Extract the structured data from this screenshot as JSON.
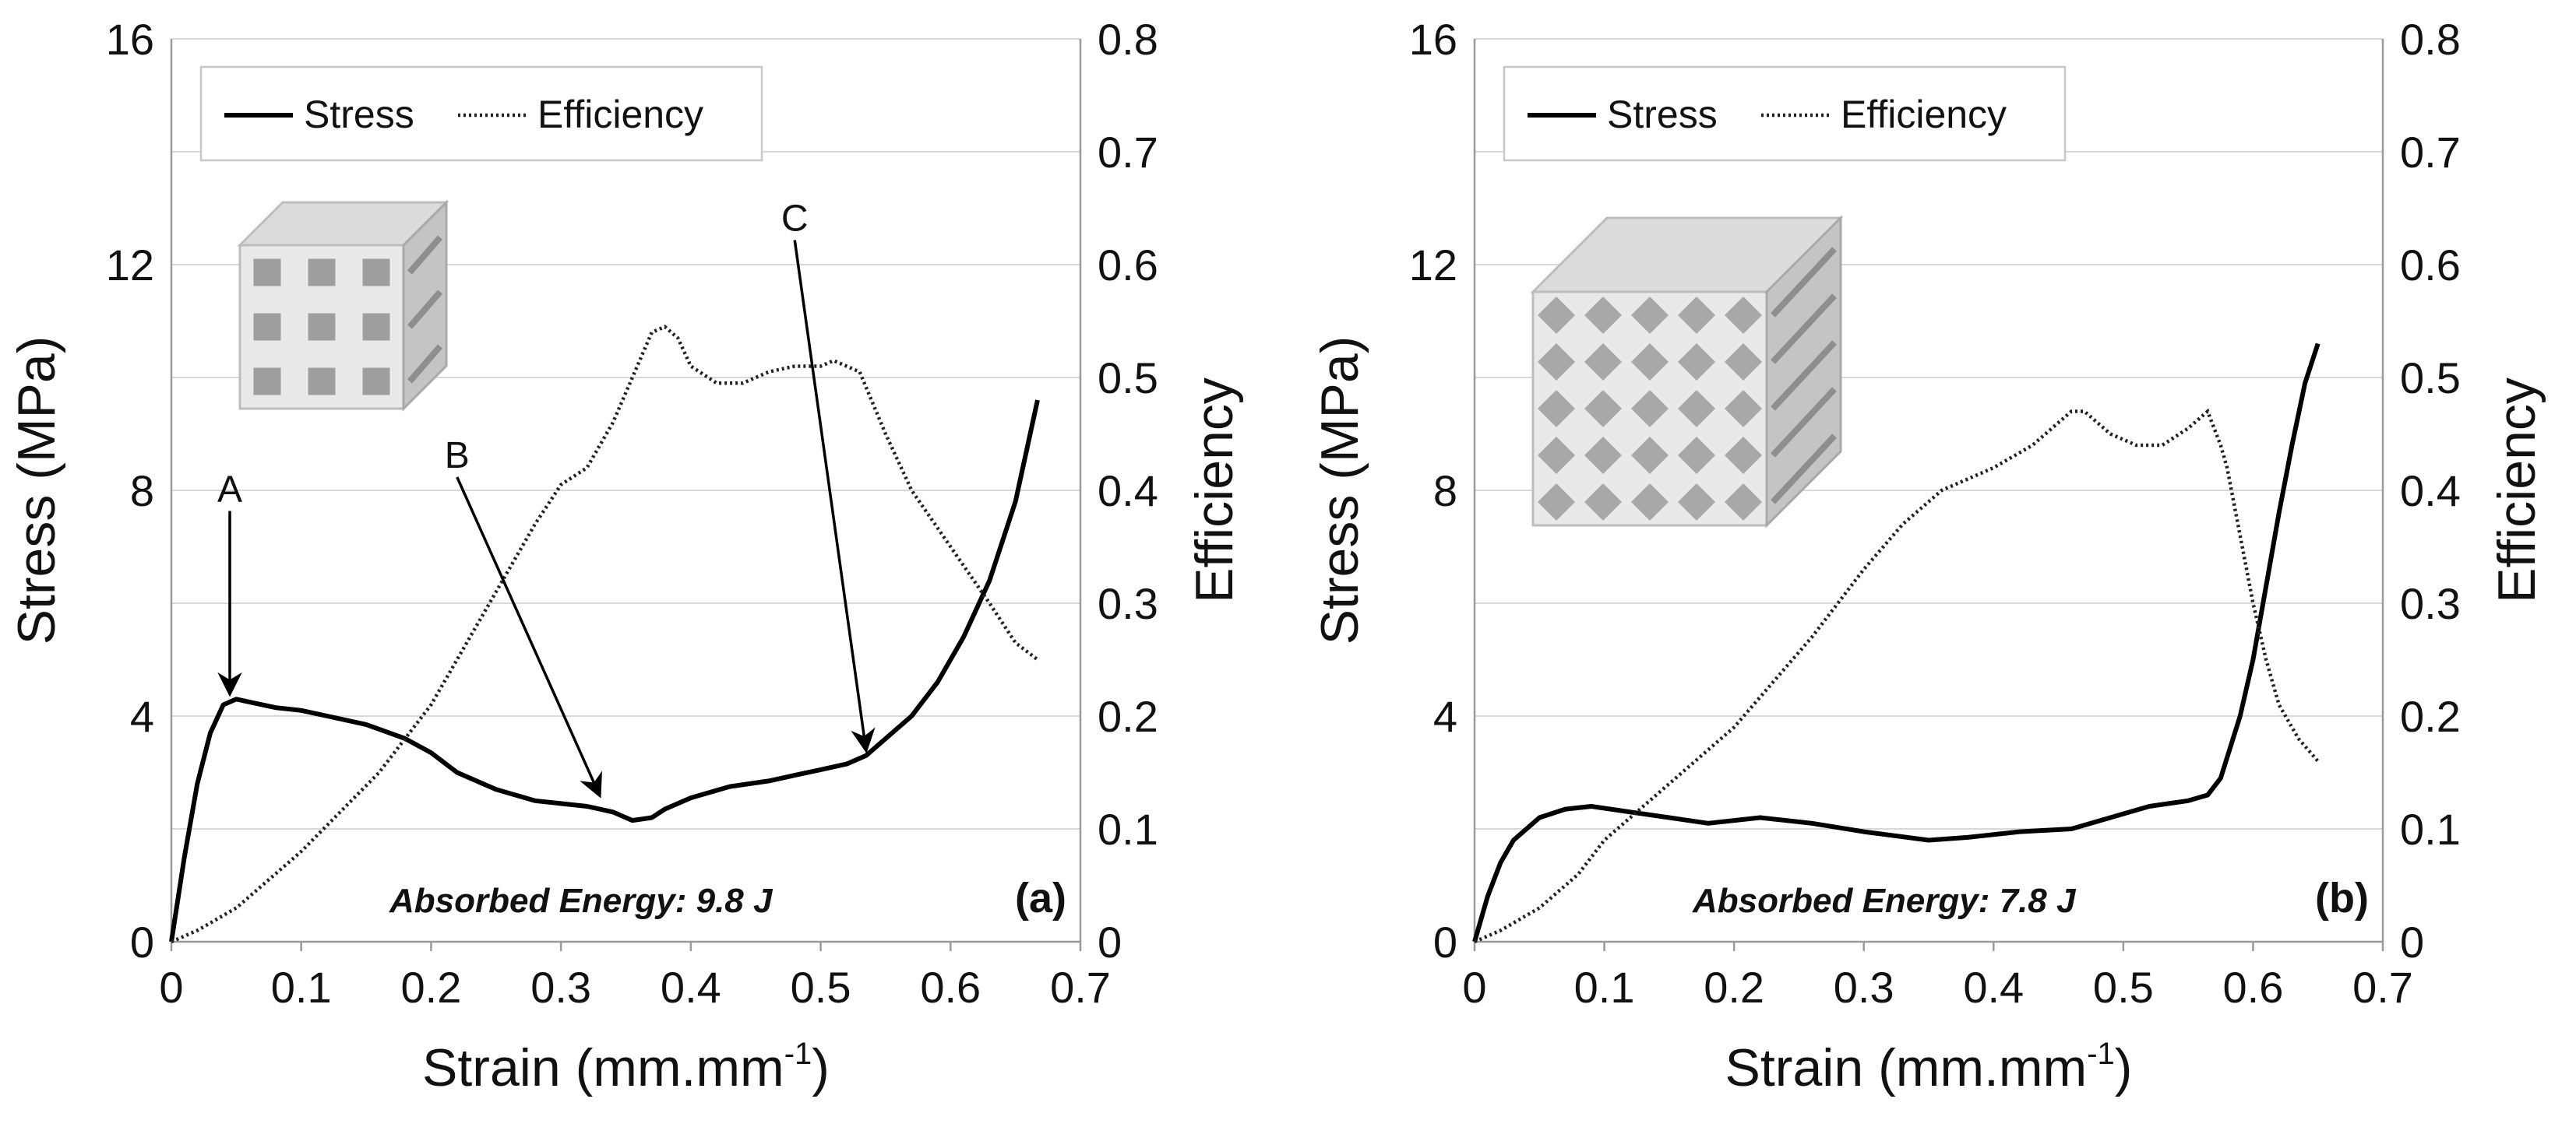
{
  "chart_data": [
    {
      "type": "line",
      "panel_label": "(a)",
      "xlabel": "Strain (mm.mm",
      "xlabel_sup": "-1",
      "xlabel_close": ")",
      "ylabel": "Stress (MPa)",
      "y2label": "Efficiency",
      "xlim": [
        0,
        0.7
      ],
      "ylim": [
        0,
        16
      ],
      "y2lim": [
        0,
        0.8
      ],
      "xticks": [
        "0",
        "0.1",
        "0.2",
        "0.3",
        "0.4",
        "0.5",
        "0.6",
        "0.7"
      ],
      "yticks": [
        "0",
        "4",
        "8",
        "12",
        "16"
      ],
      "y2ticks": [
        "0",
        "0.1",
        "0.2",
        "0.3",
        "0.4",
        "0.5",
        "0.6",
        "0.7",
        "0.8"
      ],
      "grid": true,
      "legend": {
        "position": "top-left",
        "entries": [
          "Stress",
          "Efficiency"
        ]
      },
      "annotation": "Absorbed Energy: 9.8 J",
      "inset": "cubic-lattice",
      "arrows": [
        {
          "label": "A",
          "point": [
            0.045,
            4.3
          ],
          "text_at": [
            0.045,
            7.8
          ]
        },
        {
          "label": "B",
          "point": [
            0.33,
            2.5
          ],
          "text_at": [
            0.22,
            8.4
          ]
        },
        {
          "label": "C",
          "point": [
            0.535,
            3.3
          ],
          "text_at": [
            0.48,
            12.6
          ]
        }
      ],
      "series": [
        {
          "name": "Stress",
          "axis": "left",
          "x": [
            0,
            0.01,
            0.02,
            0.03,
            0.04,
            0.05,
            0.06,
            0.08,
            0.1,
            0.12,
            0.15,
            0.18,
            0.2,
            0.22,
            0.25,
            0.28,
            0.3,
            0.32,
            0.34,
            0.355,
            0.37,
            0.38,
            0.4,
            0.43,
            0.46,
            0.48,
            0.5,
            0.52,
            0.535,
            0.55,
            0.57,
            0.59,
            0.61,
            0.63,
            0.65,
            0.667
          ],
          "y": [
            0,
            1.5,
            2.8,
            3.7,
            4.2,
            4.3,
            4.25,
            4.15,
            4.1,
            4.0,
            3.85,
            3.6,
            3.35,
            3.0,
            2.7,
            2.5,
            2.45,
            2.4,
            2.3,
            2.15,
            2.2,
            2.35,
            2.55,
            2.75,
            2.85,
            2.95,
            3.05,
            3.15,
            3.3,
            3.6,
            4.0,
            4.6,
            5.4,
            6.4,
            7.8,
            9.6
          ]
        },
        {
          "name": "Efficiency",
          "axis": "right",
          "x": [
            0,
            0.02,
            0.05,
            0.08,
            0.1,
            0.13,
            0.16,
            0.2,
            0.24,
            0.28,
            0.3,
            0.32,
            0.34,
            0.355,
            0.37,
            0.38,
            0.39,
            0.4,
            0.42,
            0.44,
            0.46,
            0.48,
            0.5,
            0.51,
            0.52,
            0.53,
            0.55,
            0.57,
            0.6,
            0.63,
            0.65,
            0.667
          ],
          "y": [
            0,
            0.01,
            0.03,
            0.06,
            0.08,
            0.115,
            0.15,
            0.21,
            0.29,
            0.37,
            0.405,
            0.42,
            0.46,
            0.5,
            0.54,
            0.545,
            0.535,
            0.51,
            0.495,
            0.495,
            0.505,
            0.51,
            0.51,
            0.515,
            0.51,
            0.505,
            0.45,
            0.4,
            0.35,
            0.3,
            0.265,
            0.25
          ]
        }
      ]
    },
    {
      "type": "line",
      "panel_label": "(b)",
      "xlabel": "Strain (mm.mm",
      "xlabel_sup": "-1",
      "xlabel_close": ")",
      "ylabel": "Stress (MPa)",
      "y2label": "Efficiency",
      "xlim": [
        0,
        0.7
      ],
      "ylim": [
        0,
        16
      ],
      "y2lim": [
        0,
        0.8
      ],
      "xticks": [
        "0",
        "0.1",
        "0.2",
        "0.3",
        "0.4",
        "0.5",
        "0.6",
        "0.7"
      ],
      "yticks": [
        "0",
        "4",
        "8",
        "12",
        "16"
      ],
      "y2ticks": [
        "0",
        "0.1",
        "0.2",
        "0.3",
        "0.4",
        "0.5",
        "0.6",
        "0.7",
        "0.8"
      ],
      "grid": true,
      "legend": {
        "position": "top-left",
        "entries": [
          "Stress",
          "Efficiency"
        ]
      },
      "annotation": "Absorbed Energy: 7.8 J",
      "inset": "diamond-lattice",
      "arrows": [],
      "series": [
        {
          "name": "Stress",
          "axis": "left",
          "x": [
            0,
            0.01,
            0.02,
            0.03,
            0.05,
            0.07,
            0.09,
            0.12,
            0.15,
            0.18,
            0.22,
            0.26,
            0.3,
            0.35,
            0.38,
            0.42,
            0.46,
            0.49,
            0.52,
            0.55,
            0.565,
            0.575,
            0.59,
            0.6,
            0.61,
            0.62,
            0.63,
            0.64,
            0.65
          ],
          "y": [
            0,
            0.8,
            1.4,
            1.8,
            2.2,
            2.35,
            2.4,
            2.3,
            2.2,
            2.1,
            2.2,
            2.1,
            1.95,
            1.8,
            1.85,
            1.95,
            2.0,
            2.2,
            2.4,
            2.5,
            2.6,
            2.9,
            4.0,
            5.0,
            6.3,
            7.6,
            8.8,
            9.9,
            10.6
          ]
        },
        {
          "name": "Efficiency",
          "axis": "right",
          "x": [
            0,
            0.02,
            0.05,
            0.08,
            0.1,
            0.13,
            0.16,
            0.18,
            0.2,
            0.23,
            0.26,
            0.3,
            0.33,
            0.36,
            0.38,
            0.4,
            0.43,
            0.46,
            0.47,
            0.49,
            0.51,
            0.53,
            0.55,
            0.565,
            0.575,
            0.58,
            0.59,
            0.6,
            0.61,
            0.62,
            0.635,
            0.65
          ],
          "y": [
            0,
            0.01,
            0.03,
            0.06,
            0.09,
            0.12,
            0.15,
            0.17,
            0.19,
            0.23,
            0.27,
            0.33,
            0.37,
            0.4,
            0.41,
            0.42,
            0.44,
            0.47,
            0.47,
            0.45,
            0.44,
            0.44,
            0.455,
            0.47,
            0.44,
            0.42,
            0.36,
            0.3,
            0.25,
            0.21,
            0.18,
            0.16
          ]
        }
      ]
    }
  ]
}
